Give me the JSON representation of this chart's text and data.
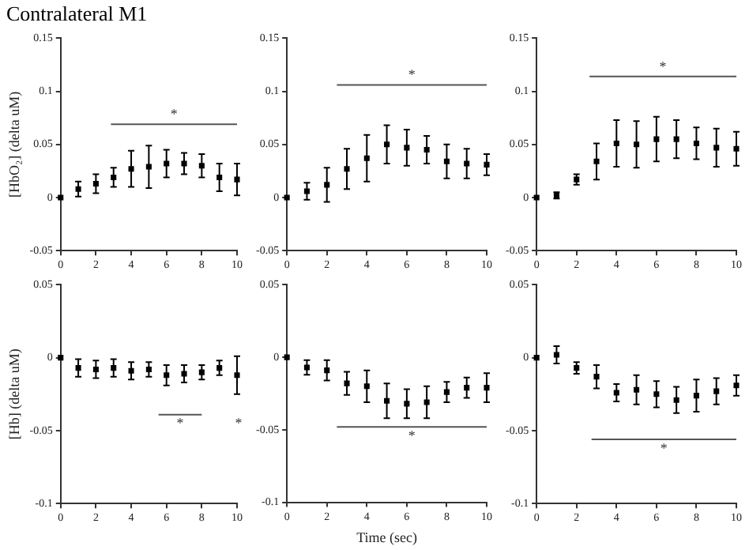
{
  "chart_data": [
    {
      "type": "scatter",
      "title": "Contralateral M1",
      "ylabel": "[HbO₂] (delta uM)",
      "x": [
        0,
        1,
        2,
        3,
        4,
        5,
        6,
        7,
        8,
        9,
        10
      ],
      "xlim": [
        0,
        10
      ],
      "xticks": [
        0,
        2,
        4,
        6,
        8,
        10
      ],
      "ylim": [
        -0.05,
        0.15
      ],
      "yticks": [
        -0.05,
        0,
        0.05,
        0.1,
        0.15
      ],
      "marker": "square",
      "series": [
        {
          "color": "#000000",
          "values": [
            0,
            0.008,
            0.013,
            0.019,
            0.027,
            0.029,
            0.032,
            0.032,
            0.03,
            0.019,
            0.017
          ],
          "errors": [
            null,
            0.007,
            0.009,
            0.009,
            0.017,
            0.02,
            0.013,
            0.01,
            0.011,
            0.013,
            0.015
          ]
        },
        {
          "type": "line",
          "x": [
            2.85,
            10
          ],
          "values": [
            0.069,
            0.069
          ],
          "color": "#555555",
          "marker": "none"
        }
      ],
      "annotations": [
        "*"
      ]
    },
    {
      "type": "scatter",
      "x": [
        0,
        1,
        2,
        3,
        4,
        5,
        6,
        7,
        8,
        9,
        10
      ],
      "xlim": [
        0,
        10
      ],
      "xticks": [
        0,
        2,
        4,
        6,
        8,
        10
      ],
      "ylim": [
        -0.05,
        0.15
      ],
      "yticks": [
        -0.05,
        0,
        0.05,
        0.1,
        0.15
      ],
      "marker": "square",
      "series": [
        {
          "color": "#000000",
          "values": [
            0,
            0.006,
            0.012,
            0.027,
            0.037,
            0.05,
            0.047,
            0.045,
            0.034,
            0.032,
            0.031
          ],
          "errors": [
            null,
            0.008,
            0.016,
            0.019,
            0.022,
            0.018,
            0.017,
            0.013,
            0.016,
            0.014,
            0.01
          ]
        },
        {
          "type": "line",
          "x": [
            2.5,
            10
          ],
          "values": [
            0.106,
            0.106
          ],
          "color": "#555555",
          "marker": "none"
        }
      ],
      "annotations": [
        "*"
      ]
    },
    {
      "type": "scatter",
      "x": [
        0,
        1,
        2,
        3,
        4,
        5,
        6,
        7,
        8,
        9,
        10
      ],
      "xlim": [
        0,
        10
      ],
      "xticks": [
        0,
        2,
        4,
        6,
        8,
        10
      ],
      "ylim": [
        -0.05,
        0.15
      ],
      "yticks": [
        -0.05,
        0,
        0.05,
        0.1,
        0.15
      ],
      "marker": "square",
      "series": [
        {
          "color": "#000000",
          "values": [
            0,
            0.002,
            0.017,
            0.034,
            0.051,
            0.05,
            0.055,
            0.055,
            0.051,
            0.047,
            0.046
          ],
          "errors": [
            null,
            0.003,
            0.005,
            0.017,
            0.022,
            0.022,
            0.021,
            0.018,
            0.015,
            0.018,
            0.016
          ]
        },
        {
          "type": "line",
          "x": [
            2.65,
            10
          ],
          "values": [
            0.114,
            0.114
          ],
          "color": "#555555",
          "marker": "none"
        }
      ],
      "annotations": [
        "*"
      ]
    },
    {
      "type": "scatter",
      "ylabel": "[Hb] (delta uM)",
      "x": [
        0,
        1,
        2,
        3,
        4,
        5,
        6,
        7,
        8,
        9,
        10
      ],
      "xlim": [
        0,
        10
      ],
      "xticks": [
        0,
        2,
        4,
        6,
        8,
        10
      ],
      "ylim": [
        -0.1,
        0.05
      ],
      "yticks": [
        -0.1,
        -0.05,
        0,
        0.05
      ],
      "marker": "square",
      "series": [
        {
          "color": "#000000",
          "values": [
            0,
            -0.007,
            -0.008,
            -0.007,
            -0.009,
            -0.008,
            -0.012,
            -0.011,
            -0.01,
            -0.007,
            -0.012
          ],
          "errors": [
            null,
            0.006,
            0.006,
            0.006,
            0.006,
            0.005,
            0.007,
            0.006,
            0.005,
            0.005,
            0.013
          ]
        },
        {
          "type": "line",
          "x": [
            5.55,
            8
          ],
          "values": [
            -0.039,
            -0.039
          ],
          "color": "#555555",
          "marker": "none"
        }
      ],
      "annotations": [
        "*",
        "*"
      ]
    },
    {
      "type": "scatter",
      "xlabel": "Time (sec)",
      "x": [
        0,
        1,
        2,
        3,
        4,
        5,
        6,
        7,
        8,
        9,
        10
      ],
      "xlim": [
        0,
        10
      ],
      "xticks": [
        0,
        2,
        4,
        6,
        8,
        10
      ],
      "ylim": [
        -0.1,
        0.05
      ],
      "yticks": [
        -0.1,
        -0.05,
        0,
        0.05
      ],
      "marker": "square",
      "series": [
        {
          "color": "#000000",
          "values": [
            0,
            -0.007,
            -0.009,
            -0.018,
            -0.02,
            -0.03,
            -0.032,
            -0.031,
            -0.024,
            -0.021,
            -0.021
          ],
          "errors": [
            null,
            0.005,
            0.007,
            0.008,
            0.011,
            0.012,
            0.01,
            0.011,
            0.007,
            0.007,
            0.01
          ]
        },
        {
          "type": "line",
          "x": [
            2.5,
            10
          ],
          "values": [
            -0.048,
            -0.048
          ],
          "color": "#555555",
          "marker": "none"
        }
      ],
      "annotations": [
        "*"
      ]
    },
    {
      "type": "scatter",
      "x": [
        0,
        1,
        2,
        3,
        4,
        5,
        6,
        7,
        8,
        9,
        10
      ],
      "xlim": [
        0,
        10
      ],
      "xticks": [
        0,
        2,
        4,
        6,
        8,
        10
      ],
      "ylim": [
        -0.1,
        0.05
      ],
      "yticks": [
        -0.1,
        -0.05,
        0,
        0.05
      ],
      "marker": "square",
      "series": [
        {
          "color": "#000000",
          "values": [
            0,
            0.002,
            -0.007,
            -0.013,
            -0.024,
            -0.022,
            -0.025,
            -0.029,
            -0.026,
            -0.023,
            -0.019
          ],
          "errors": [
            null,
            0.006,
            0.004,
            0.008,
            0.006,
            0.01,
            0.009,
            0.009,
            0.011,
            0.009,
            0.007
          ]
        },
        {
          "type": "line",
          "x": [
            2.75,
            10
          ],
          "values": [
            -0.056,
            -0.056
          ],
          "color": "#555555",
          "marker": "none"
        }
      ],
      "annotations": [
        "*"
      ]
    }
  ]
}
